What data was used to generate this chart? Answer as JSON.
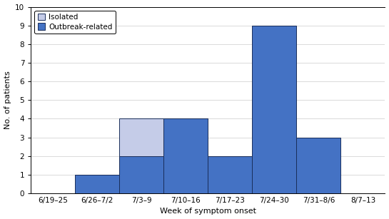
{
  "weeks": [
    "6/19–25",
    "6/26–7/2",
    "7/3–9",
    "7/10–16",
    "7/17–23",
    "7/24–30",
    "7/31–8/6",
    "8/7–13"
  ],
  "outbreak_values": [
    0,
    1,
    2,
    4,
    2,
    9,
    3,
    0
  ],
  "isolated_values": [
    0,
    0,
    2,
    0,
    0,
    0,
    0,
    0
  ],
  "outbreak_color": "#4472c4",
  "isolated_color": "#c5cce8",
  "outbreak_edge": "#1a2e5a",
  "isolated_edge": "#1a2e5a",
  "ylabel": "No. of patients",
  "xlabel": "Week of symptom onset",
  "ylim": [
    0,
    10
  ],
  "yticks": [
    0,
    1,
    2,
    3,
    4,
    5,
    6,
    7,
    8,
    9,
    10
  ],
  "legend_isolated": "Isolated",
  "legend_outbreak": "Outbreak-related",
  "background_color": "#ffffff",
  "bar_width": 1.0
}
